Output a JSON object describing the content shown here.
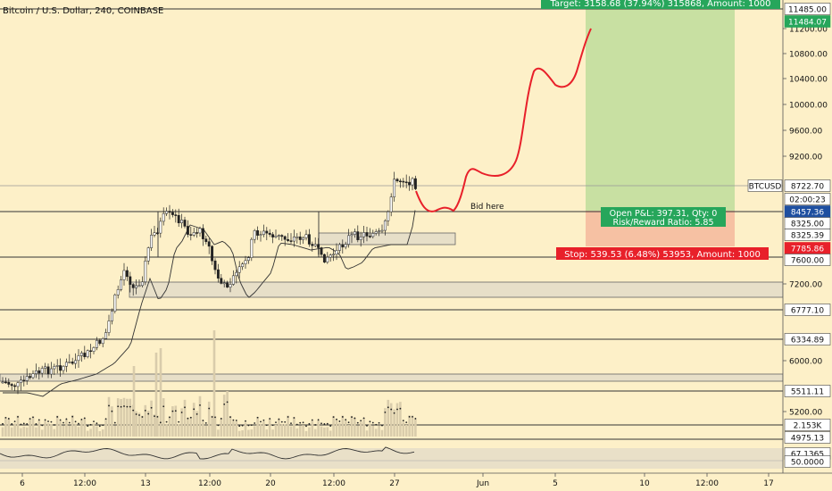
{
  "header": {
    "title": "Bitcoin / U.S. Dollar, 240, COINBASE"
  },
  "price_axis": {
    "ticks": [
      "11200.00",
      "10800.00",
      "10400.00",
      "10000.00",
      "9600.00",
      "9200.00",
      "7200.00",
      "6000.00",
      "5200.00"
    ],
    "tags": [
      {
        "id": "tag-11485",
        "label": "11485.00",
        "bg": "#ffffff",
        "fg": "#111111"
      },
      {
        "id": "tag-11484",
        "label": "11484.07",
        "bg": "#26a65b",
        "fg": "#ffffff"
      },
      {
        "id": "tag-btcusd",
        "label": "BTCUSD",
        "bg": "#ffffff",
        "fg": "#111111"
      },
      {
        "id": "tag-last",
        "label": "8722.70",
        "bg": "#ffffff",
        "fg": "#111111"
      },
      {
        "id": "tag-countdown",
        "label": "02:00:23",
        "bg": "#ffffff",
        "fg": "#111111"
      },
      {
        "id": "tag-8457",
        "label": "8457.36",
        "bg": "#1e4fa0",
        "fg": "#ffffff"
      },
      {
        "id": "tag-8325",
        "label": "8325.00",
        "bg": "#ffffff",
        "fg": "#111111"
      },
      {
        "id": "tag-8325b",
        "label": "8325.39",
        "bg": "#ffffff",
        "fg": "#111111"
      },
      {
        "id": "tag-7785",
        "label": "7785.86",
        "bg": "#e8202a",
        "fg": "#ffffff"
      },
      {
        "id": "tag-7600",
        "label": "7600.00",
        "bg": "#ffffff",
        "fg": "#111111"
      },
      {
        "id": "tag-6777",
        "label": "6777.10",
        "bg": "#ffffff",
        "fg": "#111111"
      },
      {
        "id": "tag-6334",
        "label": "6334.89",
        "bg": "#ffffff",
        "fg": "#111111"
      },
      {
        "id": "tag-5511",
        "label": "5511.11",
        "bg": "#ffffff",
        "fg": "#111111"
      },
      {
        "id": "tag-vol",
        "label": "2.153K",
        "bg": "#ffffff",
        "fg": "#111111"
      },
      {
        "id": "tag-4975",
        "label": "4975.13",
        "bg": "#ffffff",
        "fg": "#111111"
      },
      {
        "id": "tag-rsi",
        "label": "67.1365",
        "bg": "#ffffff",
        "fg": "#111111"
      },
      {
        "id": "tag-rsi50",
        "label": "50.0000",
        "bg": "#ffffff",
        "fg": "#111111"
      }
    ]
  },
  "time_axis": {
    "labels": [
      "6",
      "12:00",
      "13",
      "12:00",
      "20",
      "12:00",
      "27",
      "Jun",
      "5",
      "10",
      "12:00",
      "17"
    ]
  },
  "position": {
    "target_label": "Target: 3158.68 (37.94%) 315868, Amount: 1000",
    "stop_label": "Stop: 539.53 (6.48%) 53953, Amount: 1000",
    "pnl_label": "Open P&L: 397.31, Qty: 0",
    "rr_label": "Risk/Reward Ratio: 5.85",
    "target_color": "#26a65b",
    "stop_color": "#e8202a"
  },
  "annotation": {
    "bid_text": "Bid here"
  }
}
